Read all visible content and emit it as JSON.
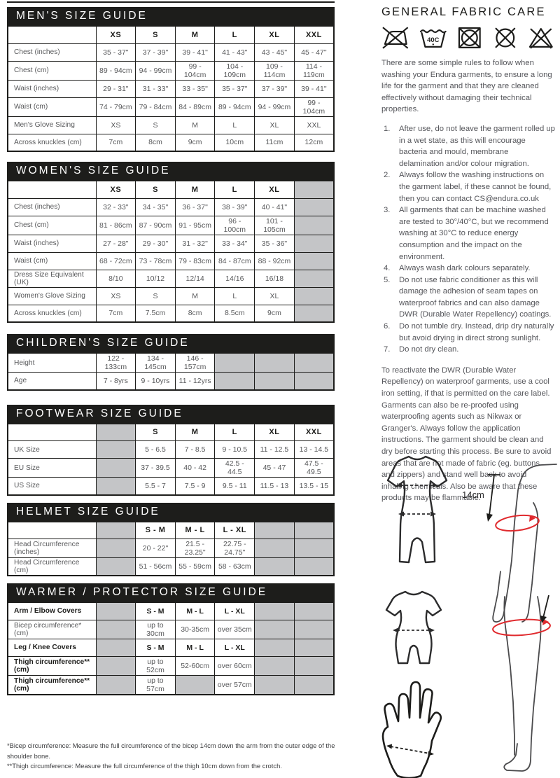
{
  "colors": {
    "bar_black": "#1d1d1b",
    "cell_gray": "#c4c5c7",
    "text_gray": "#58595b",
    "accent_red": "#e02a2e"
  },
  "tables": [
    {
      "title": "MEN'S SIZE GUIDE",
      "header": [
        "",
        "XS",
        "S",
        "M",
        "L",
        "XL",
        "XXL"
      ],
      "rows": [
        {
          "label": "Chest (inches)",
          "cells": [
            "35 - 37\"",
            "37 - 39\"",
            "39 - 41\"",
            "41 - 43\"",
            "43 - 45\"",
            "45 - 47\""
          ]
        },
        {
          "label": "Chest (cm)",
          "cells": [
            "89 - 94cm",
            "94 - 99cm",
            "99 - 104cm",
            "104 - 109cm",
            "109 - 114cm",
            "114 - 119cm"
          ]
        },
        {
          "label": "Waist (inches)",
          "cells": [
            "29 - 31\"",
            "31 - 33\"",
            "33 - 35\"",
            "35 - 37\"",
            "37 - 39\"",
            "39 - 41\""
          ]
        },
        {
          "label": "Waist (cm)",
          "cells": [
            "74 - 79cm",
            "79 - 84cm",
            "84 - 89cm",
            "89 - 94cm",
            "94 - 99cm",
            "99 - 104cm"
          ]
        },
        {
          "label": "Men's Glove Sizing",
          "cells": [
            "XS",
            "S",
            "M",
            "L",
            "XL",
            "XXL"
          ]
        },
        {
          "label": "Across knuckles (cm)",
          "cells": [
            "7cm",
            "8cm",
            "9cm",
            "10cm",
            "11cm",
            "12cm"
          ]
        }
      ]
    },
    {
      "title": "WOMEN'S SIZE GUIDE",
      "header": [
        "",
        "XS",
        "S",
        "M",
        "L",
        "XL",
        null
      ],
      "rows": [
        {
          "label": "Chest (inches)",
          "cells": [
            "32 - 33\"",
            "34 - 35\"",
            "36 - 37\"",
            "38 - 39\"",
            "40 - 41\"",
            null
          ]
        },
        {
          "label": "Chest (cm)",
          "cells": [
            "81 - 86cm",
            "87 - 90cm",
            "91 - 95cm",
            "96 - 100cm",
            "101 - 105cm",
            null
          ]
        },
        {
          "label": "Waist (inches)",
          "cells": [
            "27 - 28\"",
            "29 - 30\"",
            "31 - 32\"",
            "33 - 34\"",
            "35 - 36\"",
            null
          ]
        },
        {
          "label": "Waist (cm)",
          "cells": [
            "68 - 72cm",
            "73 - 78cm",
            "79 - 83cm",
            "84 - 87cm",
            "88 - 92cm",
            null
          ]
        },
        {
          "label": "Dress Size Equivalent (UK)",
          "cells": [
            "8/10",
            "10/12",
            "12/14",
            "14/16",
            "16/18",
            null
          ]
        },
        {
          "label": "Women's Glove Sizing",
          "cells": [
            "XS",
            "S",
            "M",
            "L",
            "XL",
            null
          ]
        },
        {
          "label": "Across knuckles (cm)",
          "cells": [
            "7cm",
            "7.5cm",
            "8cm",
            "8.5cm",
            "9cm",
            null
          ]
        }
      ]
    },
    {
      "title": "CHILDREN'S SIZE GUIDE",
      "header": null,
      "rows": [
        {
          "label": "Height",
          "cells": [
            "122 - 133cm",
            "134 - 145cm",
            "146 - 157cm",
            null,
            null,
            null
          ]
        },
        {
          "label": "Age",
          "cells": [
            "7 - 8yrs",
            "9 - 10yrs",
            "11 - 12yrs",
            null,
            null,
            null
          ]
        }
      ]
    },
    {
      "title": "FOOTWEAR SIZE GUIDE",
      "header": [
        "",
        null,
        "S",
        "M",
        "L",
        "XL",
        "XXL"
      ],
      "rows": [
        {
          "label": "UK Size",
          "cells": [
            null,
            "5 - 6.5",
            "7 - 8.5",
            "9 - 10.5",
            "11 - 12.5",
            "13 - 14.5"
          ]
        },
        {
          "label": "EU Size",
          "cells": [
            null,
            "37 - 39.5",
            "40 - 42",
            "42.5 - 44.5",
            "45 - 47",
            "47.5 - 49.5"
          ]
        },
        {
          "label": "US Size",
          "cells": [
            null,
            "5.5 - 7",
            "7.5 - 9",
            "9.5 - 11",
            "11.5 - 13",
            "13.5 - 15"
          ]
        }
      ]
    },
    {
      "title": "HELMET SIZE GUIDE",
      "header": [
        "",
        null,
        "S - M",
        "M - L",
        "L - XL",
        null,
        null
      ],
      "rows": [
        {
          "label": "Head Circumference (inches)",
          "cells": [
            null,
            "20 - 22\"",
            "21.5 - 23.25\"",
            "22.75 - 24.75\"",
            null,
            null
          ]
        },
        {
          "label": "Head Circumference (cm)",
          "cells": [
            null,
            "51 - 56cm",
            "55 - 59cm",
            "58 - 63cm",
            null,
            null
          ]
        }
      ]
    },
    {
      "title": "WARMER / PROTECTOR SIZE GUIDE",
      "header": null,
      "rows": [
        {
          "label": "Arm / Elbow Covers",
          "bold": true,
          "cells": [
            null,
            "S - M",
            "M - L",
            "L - XL",
            null,
            null
          ]
        },
        {
          "label": "Bicep circumference* (cm)",
          "cells": [
            null,
            "up to 30cm",
            "30-35cm",
            "over 35cm",
            null,
            null
          ]
        },
        {
          "label": "Leg / Knee Covers",
          "bold": true,
          "cells": [
            null,
            "S - M",
            "M - L",
            "L - XL",
            null,
            null
          ]
        },
        {
          "label": "Thigh circumference** (cm)",
          "labelBold": true,
          "cells": [
            null,
            "up to 52cm",
            "52-60cm",
            "over 60cm",
            null,
            null
          ]
        },
        {
          "label": "Thigh circumference** (cm)",
          "labelBold": true,
          "cells": [
            null,
            "up to 57cm",
            null,
            "over 57cm",
            null,
            null
          ]
        }
      ]
    }
  ],
  "footnotes": [
    "*Bicep circumference: Measure the full circumference of the bicep 14cm down the arm from the outer edge of the shoulder bone.",
    "**Thigh circumference: Measure the full circumference of the thigh 10cm down from the crotch."
  ],
  "fabric_care": {
    "title": "GENERAL FABRIC CARE",
    "icons": [
      {
        "name": "do-not-iron-icon",
        "meaning": "Do not iron"
      },
      {
        "name": "wash-40c-icon",
        "meaning": "Machine wash at 40C",
        "label": "40C"
      },
      {
        "name": "do-not-tumble-dry-icon",
        "meaning": "Do not tumble dry"
      },
      {
        "name": "do-not-dry-clean-icon",
        "meaning": "Do not dry clean"
      },
      {
        "name": "do-not-bleach-icon",
        "meaning": "Do not bleach"
      }
    ],
    "intro": "There are some simple rules to follow when washing your Endura garments, to ensure a long life for the garment and that they are cleaned effectively without damaging their technical properties.",
    "rules": [
      "After use, do not leave the garment rolled up in a wet state, as this will encourage bacteria and mould, membrane delamination and/or colour migration.",
      "Always follow the washing instructions on the garment label, if these cannot be found, then you can contact CS@endura.co.uk",
      "All garments that can be machine washed are tested to 30°/40°C, but we recommend washing at 30°C to reduce energy consumption and the impact on the environment.",
      "Always wash dark colours separately.",
      "Do not use fabric conditioner as this will damage the adhesion of seam tapes on waterproof fabrics and can also damage DWR (Durable Water Repellency) coatings.",
      "Do not tumble dry. Instead, drip dry naturally but avoid drying in direct strong sunlight.",
      "Do not dry clean."
    ],
    "dwr_paragraph": "To reactivate the DWR (Durable Water Repellency) on waterproof garments, use a cool iron setting, if that is permitted on the care label.  Garments can also be re-proofed using waterproofing agents such as Nikwax or Granger's. Always follow the application instructions. The garment should be clean and dry before starting this process.  Be sure to avoid areas that are not made of fabric (eg. buttons and zippers) and stand well back to avoid inhaling chemicals.  Also be aware that these products may be flammable."
  },
  "diagram": {
    "arm_measure_label": "14cm"
  }
}
